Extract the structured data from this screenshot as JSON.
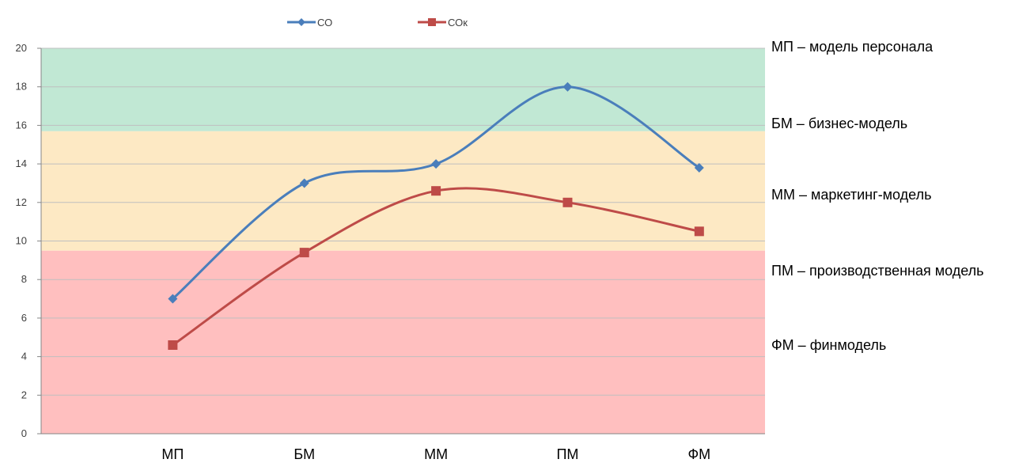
{
  "chart_data": {
    "type": "line",
    "categories": [
      "МП",
      "БМ",
      "ММ",
      "ПМ",
      "ФМ"
    ],
    "series": [
      {
        "name": "СО",
        "values": [
          7,
          13,
          14,
          18,
          13.8
        ],
        "color": "#4a7ebb",
        "marker": "diamond"
      },
      {
        "name": "СОк",
        "values": [
          4.6,
          9.4,
          12.6,
          12,
          10.5
        ],
        "color": "#be4b48",
        "marker": "square"
      }
    ],
    "ylim": [
      0,
      20
    ],
    "yticks": [
      0,
      2,
      4,
      6,
      8,
      10,
      12,
      14,
      16,
      18,
      20
    ],
    "grid": true,
    "smooth": true,
    "legend": "top",
    "bands": [
      {
        "from": 0,
        "to": 9.5,
        "color": "#ffbfbf"
      },
      {
        "from": 9.5,
        "to": 15.7,
        "color": "#fde9c4"
      },
      {
        "from": 15.7,
        "to": 20,
        "color": "#c1e8d4"
      }
    ]
  },
  "annotations": [
    "МП – модель персонала",
    "БМ – бизнес-модель",
    "ММ – маркетинг-модель",
    "ПМ – производственная модель",
    "ФМ – финмодель"
  ]
}
